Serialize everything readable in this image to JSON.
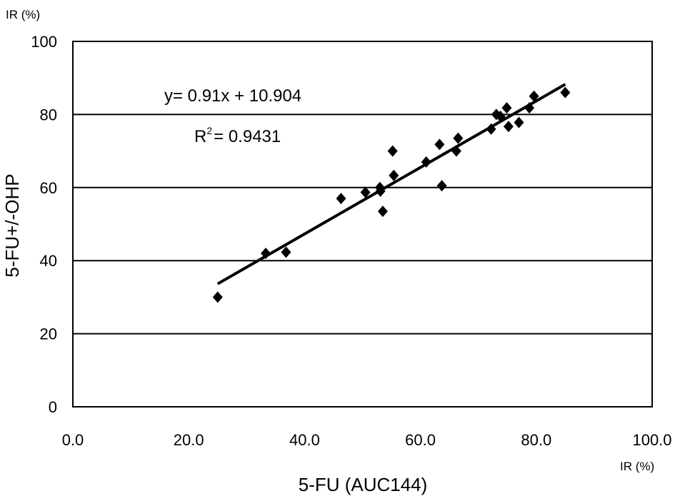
{
  "chart_data": {
    "type": "scatter",
    "y_unit_label": "IR (%)",
    "x_unit_label": "IR (%)",
    "xlabel": "5-FU (AUC144)",
    "ylabel": "5-FU+/-OHP",
    "xlim": [
      0,
      100
    ],
    "ylim": [
      0,
      100
    ],
    "x_tick_labels": [
      "0.0",
      "20.0",
      "40.0",
      "60.0",
      "80.0",
      "100.0"
    ],
    "y_tick_labels": [
      "0",
      "20",
      "40",
      "60",
      "80",
      "100"
    ],
    "grid": "horizontal",
    "equation": "y= 0.91x + 10.904",
    "r2_prefix": "R",
    "r2_exp": "2",
    "r2_value": "= 0.9431",
    "trendline": {
      "slope": 0.91,
      "intercept": 10.904,
      "x_range": [
        25,
        85
      ]
    },
    "points": [
      {
        "x": 25.0,
        "y": 30.0
      },
      {
        "x": 33.3,
        "y": 42.0
      },
      {
        "x": 36.8,
        "y": 42.3
      },
      {
        "x": 46.3,
        "y": 57.0
      },
      {
        "x": 50.5,
        "y": 58.7
      },
      {
        "x": 53.0,
        "y": 60.0
      },
      {
        "x": 53.1,
        "y": 59.0
      },
      {
        "x": 53.5,
        "y": 53.5
      },
      {
        "x": 55.2,
        "y": 70.0
      },
      {
        "x": 55.4,
        "y": 63.3
      },
      {
        "x": 61.0,
        "y": 67.0
      },
      {
        "x": 63.3,
        "y": 71.8
      },
      {
        "x": 63.7,
        "y": 60.5
      },
      {
        "x": 66.2,
        "y": 70.0
      },
      {
        "x": 66.5,
        "y": 73.5
      },
      {
        "x": 72.2,
        "y": 76.0
      },
      {
        "x": 73.1,
        "y": 80.0
      },
      {
        "x": 73.8,
        "y": 79.5
      },
      {
        "x": 74.9,
        "y": 81.8
      },
      {
        "x": 75.2,
        "y": 76.7
      },
      {
        "x": 77.0,
        "y": 77.8
      },
      {
        "x": 78.8,
        "y": 81.8
      },
      {
        "x": 79.6,
        "y": 85.0
      },
      {
        "x": 85.0,
        "y": 86.0
      }
    ]
  }
}
